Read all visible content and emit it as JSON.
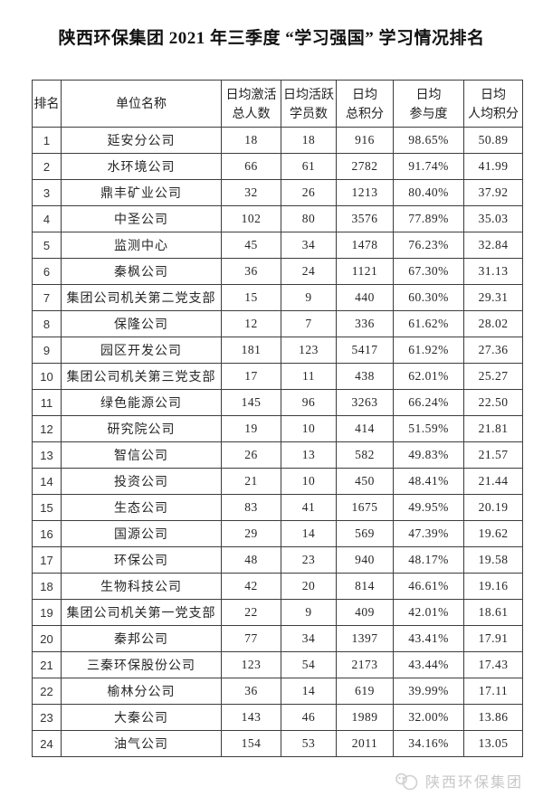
{
  "title": "陕西环保集团 2021 年三季度 “学习强国” 学习情况排名",
  "chart_data": {
    "type": "table",
    "title": "陕西环保集团 2021 年三季度 “学习强国” 学习情况排名",
    "columns": [
      "排名",
      "单位名称",
      "日均激活总人数",
      "日均活跃学员数",
      "日均总积分",
      "日均参与度",
      "日均人均积分"
    ],
    "header_lines": [
      "排名",
      "单位名称",
      "日均激活\n总人数",
      "日均活跃\n学员数",
      "日均\n总积分",
      "日均\n参与度",
      "日均\n人均积分"
    ],
    "rows": [
      [
        "1",
        "延安分公司",
        "18",
        "18",
        "916",
        "98.65%",
        "50.89"
      ],
      [
        "2",
        "水环境公司",
        "66",
        "61",
        "2782",
        "91.74%",
        "41.99"
      ],
      [
        "3",
        "鼎丰矿业公司",
        "32",
        "26",
        "1213",
        "80.40%",
        "37.92"
      ],
      [
        "4",
        "中圣公司",
        "102",
        "80",
        "3576",
        "77.89%",
        "35.03"
      ],
      [
        "5",
        "监测中心",
        "45",
        "34",
        "1478",
        "76.23%",
        "32.84"
      ],
      [
        "6",
        "秦枫公司",
        "36",
        "24",
        "1121",
        "67.30%",
        "31.13"
      ],
      [
        "7",
        "集团公司机关第二党支部",
        "15",
        "9",
        "440",
        "60.30%",
        "29.31"
      ],
      [
        "8",
        "保隆公司",
        "12",
        "7",
        "336",
        "61.62%",
        "28.02"
      ],
      [
        "9",
        "园区开发公司",
        "181",
        "123",
        "5417",
        "61.92%",
        "27.36"
      ],
      [
        "10",
        "集团公司机关第三党支部",
        "17",
        "11",
        "438",
        "62.01%",
        "25.27"
      ],
      [
        "11",
        "绿色能源公司",
        "145",
        "96",
        "3263",
        "66.24%",
        "22.50"
      ],
      [
        "12",
        "研究院公司",
        "19",
        "10",
        "414",
        "51.59%",
        "21.81"
      ],
      [
        "13",
        "智信公司",
        "26",
        "13",
        "582",
        "49.83%",
        "21.57"
      ],
      [
        "14",
        "投资公司",
        "21",
        "10",
        "450",
        "48.41%",
        "21.44"
      ],
      [
        "15",
        "生态公司",
        "83",
        "41",
        "1675",
        "49.95%",
        "20.19"
      ],
      [
        "16",
        "国源公司",
        "29",
        "14",
        "569",
        "47.39%",
        "19.62"
      ],
      [
        "17",
        "环保公司",
        "48",
        "23",
        "940",
        "48.17%",
        "19.58"
      ],
      [
        "18",
        "生物科技公司",
        "42",
        "20",
        "814",
        "46.61%",
        "19.16"
      ],
      [
        "19",
        "集团公司机关第一党支部",
        "22",
        "9",
        "409",
        "42.01%",
        "18.61"
      ],
      [
        "20",
        "秦邦公司",
        "77",
        "34",
        "1397",
        "43.41%",
        "17.91"
      ],
      [
        "21",
        "三秦环保股份公司",
        "123",
        "54",
        "2173",
        "43.44%",
        "17.43"
      ],
      [
        "22",
        "榆林分公司",
        "36",
        "14",
        "619",
        "39.99%",
        "17.11"
      ],
      [
        "23",
        "大秦公司",
        "143",
        "46",
        "1989",
        "32.00%",
        "13.86"
      ],
      [
        "24",
        "油气公司",
        "154",
        "53",
        "2011",
        "34.16%",
        "13.05"
      ]
    ]
  },
  "footer": {
    "watermark_icon": "group-logo-icon",
    "watermark_text": "陕西环保集团"
  },
  "colors": {
    "background": "#ffffff",
    "border": "#3d3d3d",
    "text": "#262626",
    "watermark": "#c7c7c7"
  }
}
